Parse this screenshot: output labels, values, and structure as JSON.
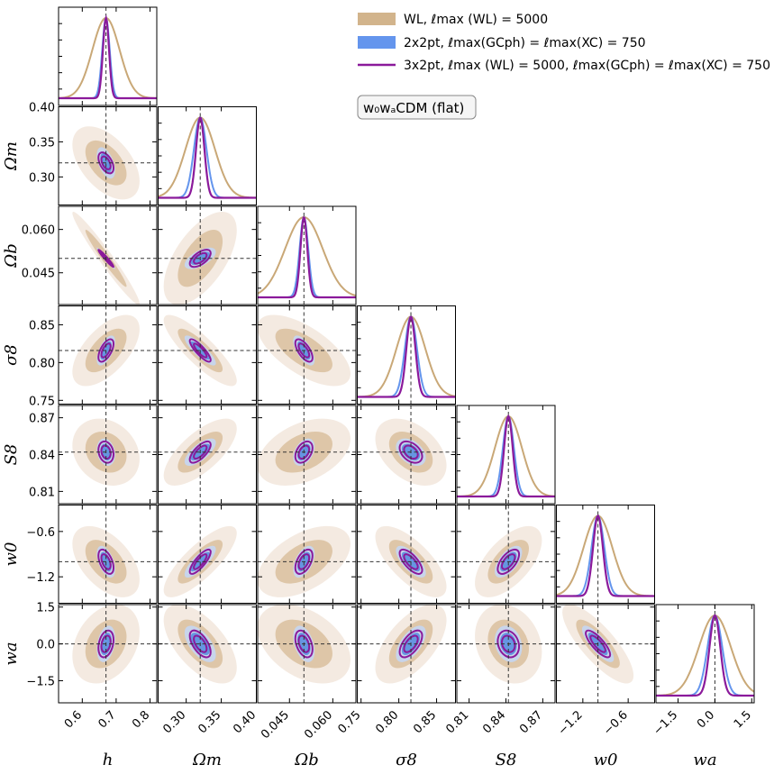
{
  "chart_data": {
    "type": "corner",
    "model_label": "w₀wₐCDM (flat)",
    "parameters": [
      {
        "name": "h",
        "label": "h",
        "fiducial": 0.67,
        "range": [
          0.53,
          0.82
        ],
        "ticks": [
          0.6,
          0.7,
          0.8
        ],
        "tick_labels": [
          "0.6",
          "0.7",
          "0.8"
        ]
      },
      {
        "name": "Om",
        "label": "Ωm",
        "fiducial": 0.32,
        "range": [
          0.26,
          0.4
        ],
        "ticks": [
          0.3,
          0.35,
          0.4
        ],
        "tick_labels": [
          "0.30",
          "0.35",
          "0.40"
        ]
      },
      {
        "name": "Ob",
        "label": "Ωb",
        "fiducial": 0.05,
        "range": [
          0.034,
          0.068
        ],
        "ticks": [
          0.045,
          0.06
        ],
        "tick_labels": [
          "0.045",
          "0.060"
        ]
      },
      {
        "name": "sigma8",
        "label": "σ8",
        "fiducial": 0.816,
        "range": [
          0.745,
          0.875
        ],
        "ticks": [
          0.75,
          0.8,
          0.85
        ],
        "tick_labels": [
          "0.75",
          "0.80",
          "0.85"
        ]
      },
      {
        "name": "S8",
        "label": "S8",
        "fiducial": 0.842,
        "range": [
          0.8,
          0.88
        ],
        "ticks": [
          0.81,
          0.84,
          0.87
        ],
        "tick_labels": [
          "0.81",
          "0.84",
          "0.87"
        ]
      },
      {
        "name": "w0",
        "label": "w0",
        "fiducial": -1.0,
        "range": [
          -1.55,
          -0.25
        ],
        "ticks": [
          -1.2,
          -0.6
        ],
        "tick_labels": [
          "−1.2",
          "−0.6"
        ]
      },
      {
        "name": "wa",
        "label": "wa",
        "fiducial": 0.0,
        "range": [
          -2.4,
          1.6
        ],
        "ticks": [
          -1.5,
          0.0,
          1.5
        ],
        "tick_labels": [
          "−1.5",
          "0.0",
          "1.5"
        ]
      }
    ],
    "series": [
      {
        "name": "WL",
        "legend": "WL, ℓmax (WL) = 5000",
        "color": "#c9a877",
        "fill_inner": "#dcc4a4",
        "fill_outer": "#f3e9df",
        "sigma": [
          0.04,
          0.021,
          0.0065,
          0.019,
          0.011,
          0.19,
          0.65
        ]
      },
      {
        "name": "2x2pt",
        "legend": "2x2pt, ℓmax(GCph) = ℓmax(XC) = 750",
        "color": "#6495ed",
        "fill_inner": "#5b8fe0",
        "fill_outer": "#c5d6f2",
        "sigma": [
          0.011,
          0.009,
          0.0015,
          0.008,
          0.0045,
          0.085,
          0.3
        ]
      },
      {
        "name": "3x2pt",
        "legend": "3x2pt, ℓmax (WL) = 5000, ℓmax(GCph) = ℓmax(XC) = 750",
        "color": "#8b1a9b",
        "sigma": [
          0.009,
          0.006,
          0.0012,
          0.006,
          0.0035,
          0.065,
          0.22
        ]
      }
    ],
    "correlations": [
      [
        1.0,
        -0.5,
        -0.97,
        0.6,
        -0.2,
        -0.5,
        0.3
      ],
      [
        -0.5,
        1.0,
        0.6,
        -0.85,
        0.7,
        0.8,
        -0.6
      ],
      [
        -0.97,
        0.6,
        1.0,
        -0.65,
        0.4,
        0.5,
        -0.4
      ],
      [
        0.6,
        -0.85,
        -0.65,
        1.0,
        -0.4,
        -0.7,
        0.6
      ],
      [
        -0.2,
        0.7,
        0.4,
        -0.4,
        1.0,
        0.6,
        -0.2
      ],
      [
        -0.5,
        0.8,
        0.5,
        -0.7,
        0.6,
        1.0,
        -0.8
      ],
      [
        0.3,
        -0.6,
        -0.4,
        0.6,
        -0.2,
        -0.8,
        1.0
      ]
    ]
  }
}
